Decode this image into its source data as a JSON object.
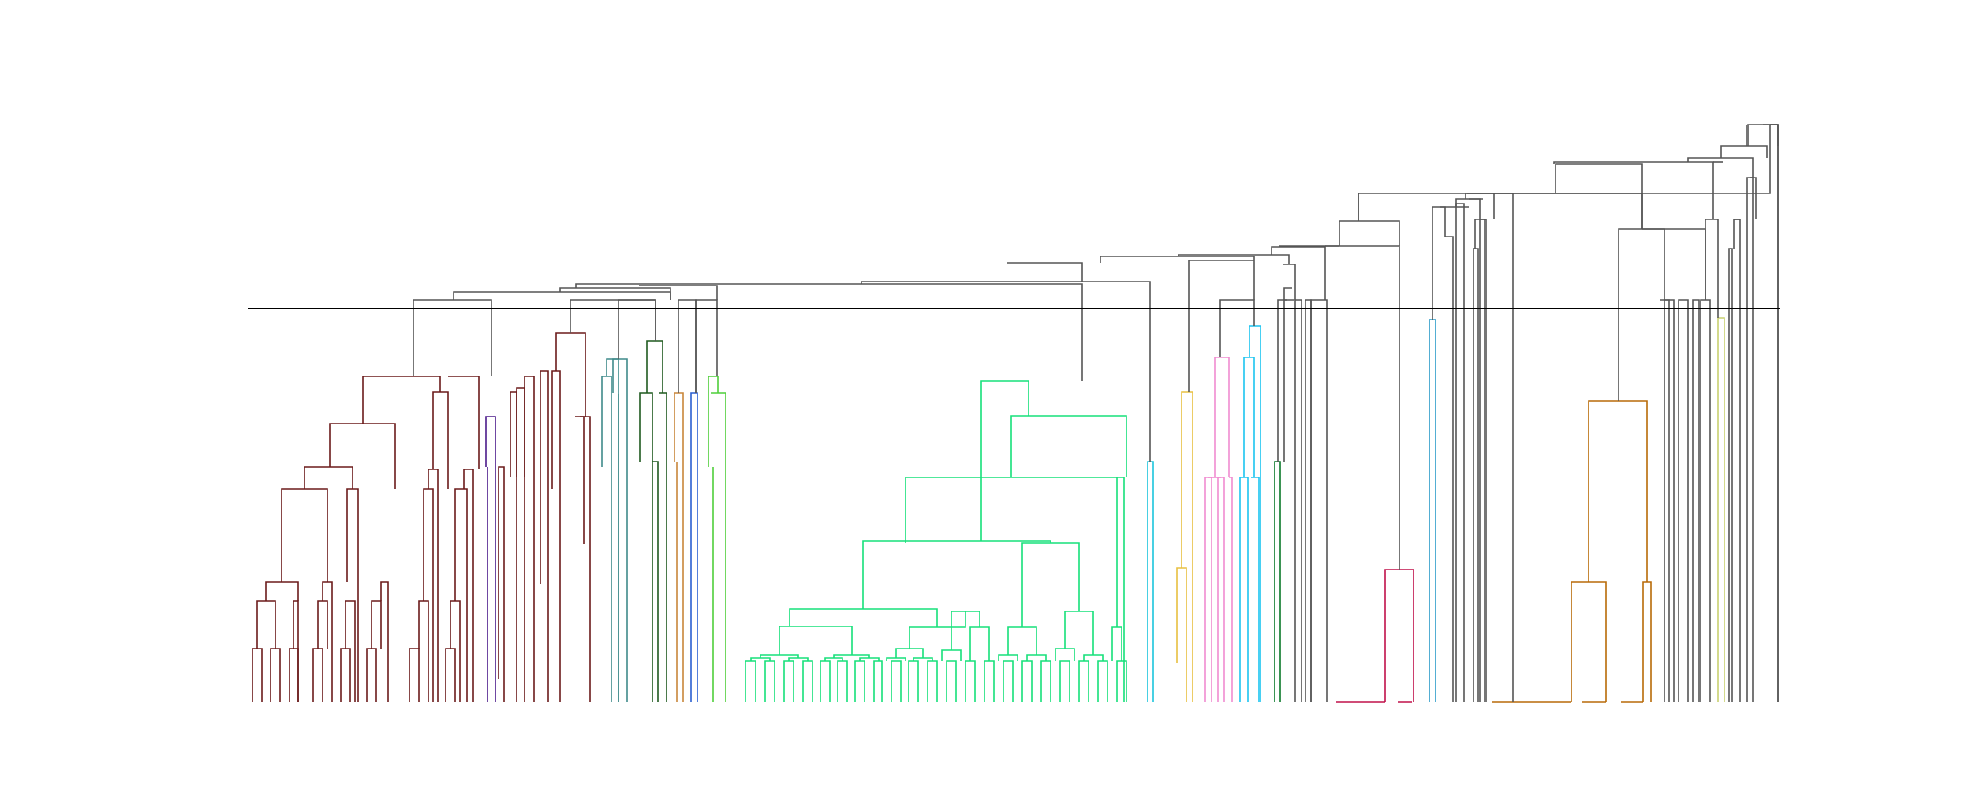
{
  "diagram": {
    "type": "dendrogram",
    "axes_visible": false,
    "cut_line_color": "#000000",
    "link_color_default": "#555555",
    "cluster_colors": {
      "maroon": "#6b1a1a",
      "purple": "#4b1a8a",
      "teal": "#3f8a8a",
      "dark_green": "#1f5a1f",
      "orange": "#c8863a",
      "blue": "#2a5fd0",
      "light_green": "#4fcf3a",
      "spring_green": "#16e07a",
      "cyan": "#1cc4dc",
      "gold": "#e8c040",
      "pink": "#f08cd0",
      "sky": "#1cc4f0",
      "deep_green": "#0a7a2a",
      "crimson": "#c0104a",
      "steel_blue": "#2a9ac8",
      "amber": "#b86a08",
      "olive": "#c8d070"
    }
  }
}
